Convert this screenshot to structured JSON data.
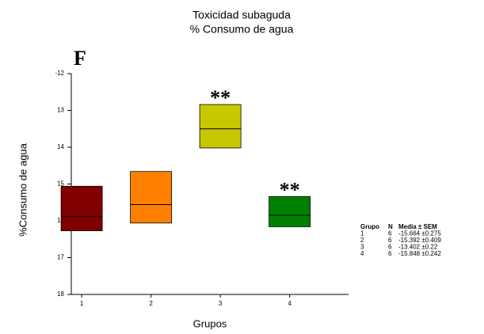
{
  "chart_data": {
    "type": "floating_box",
    "title": "Toxicidad subaguda",
    "subtitle": "% Consumo de agua",
    "panel_label": "F",
    "x_label": "Grupos",
    "y_label": "%Consumo de agua",
    "categories": [
      "1",
      "2",
      "3",
      "4"
    ],
    "low": [
      15.06,
      14.66,
      12.84,
      15.34
    ],
    "high": [
      16.27,
      16.06,
      14.02,
      16.16
    ],
    "mid": [
      15.89,
      15.56,
      13.5,
      15.85
    ],
    "colors": [
      "#800000",
      "#ff8000",
      "#c8c800",
      "#008000"
    ],
    "value_annotations": [
      null,
      null,
      "**",
      "**"
    ],
    "ylim": [
      12,
      18
    ],
    "y_inverted": true,
    "yticks": [
      {
        "value": 12,
        "label": "-12"
      },
      13,
      14,
      15,
      16,
      17,
      18
    ],
    "stats_table": {
      "columns": [
        "Grupo",
        "N",
        "Media ± SEM"
      ],
      "rows": [
        [
          "1",
          "6",
          "-15.664 ±0.275"
        ],
        [
          "2",
          "6",
          "-15.392 ±0.409"
        ],
        [
          "3",
          "6",
          "-13.402 ±0.22"
        ],
        [
          "4",
          "6",
          "-15.848 ±0.242"
        ]
      ]
    }
  }
}
